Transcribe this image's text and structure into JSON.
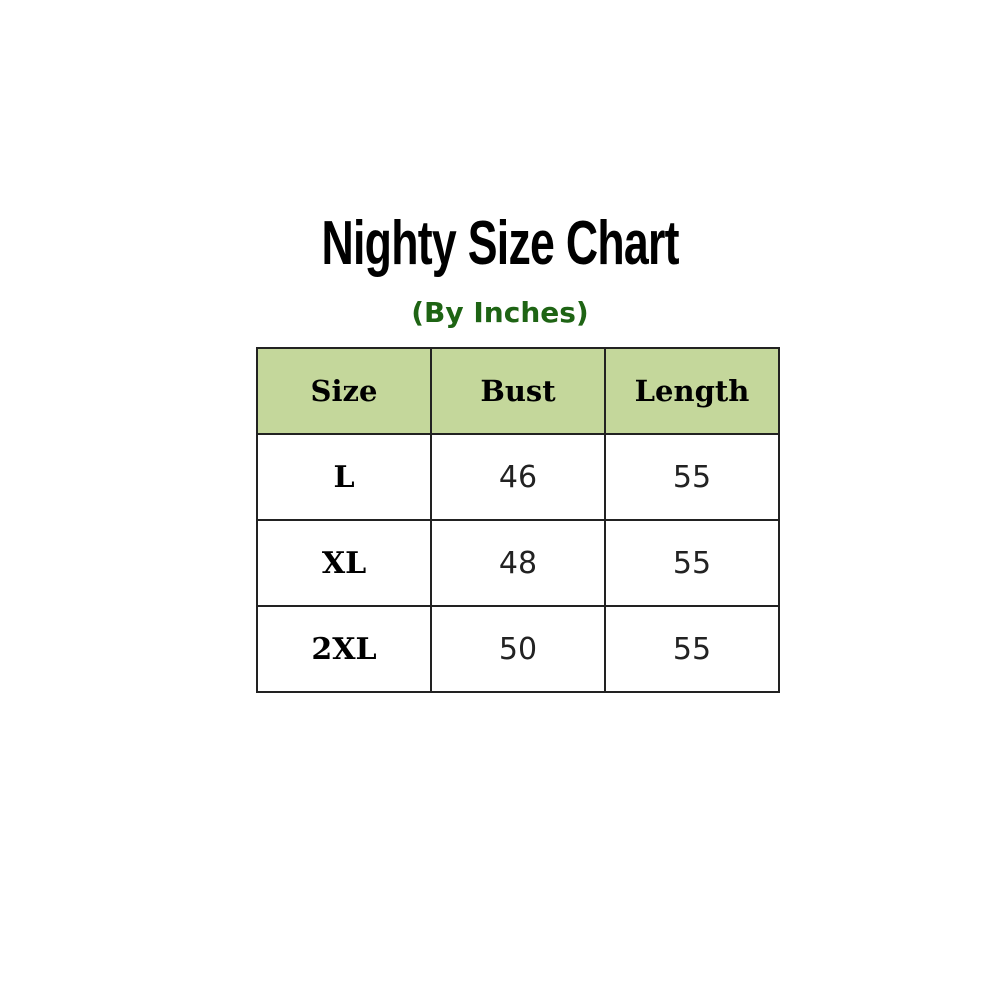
{
  "title": "Nighty Size Chart",
  "subtitle": "(By Inches)",
  "colors": {
    "header_bg": "#c4d79b",
    "subtitle": "#1e6414"
  },
  "table": {
    "headers": [
      "Size",
      "Bust",
      "Length"
    ],
    "rows": [
      [
        "L",
        "46",
        "55"
      ],
      [
        "XL",
        "48",
        "55"
      ],
      [
        "2XL",
        "50",
        "55"
      ]
    ]
  }
}
